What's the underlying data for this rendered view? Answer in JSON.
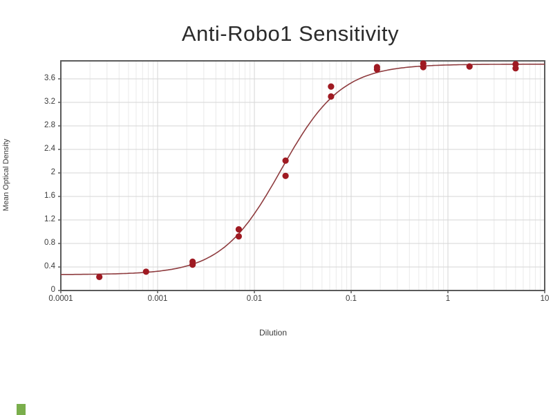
{
  "chart_data": {
    "type": "scatter",
    "title": "Anti-Robo1 Sensitivity",
    "xlabel": "Dilution",
    "ylabel": "Mean Optical Density",
    "x_scale": "log",
    "xlim": [
      0.0001,
      10
    ],
    "ylim": [
      0,
      3.9
    ],
    "grid": "on",
    "legend": "none",
    "x_ticks": [
      {
        "value": 0.0001,
        "label": "0.0001"
      },
      {
        "value": 0.001,
        "label": "0.001"
      },
      {
        "value": 0.01,
        "label": "0.01"
      },
      {
        "value": 0.1,
        "label": "0.1"
      },
      {
        "value": 1,
        "label": "1"
      },
      {
        "value": 10,
        "label": "10"
      }
    ],
    "y_ticks": [
      {
        "value": 0,
        "label": "0"
      },
      {
        "value": 0.4,
        "label": "0.4"
      },
      {
        "value": 0.8,
        "label": "0.8"
      },
      {
        "value": 1.2,
        "label": "1.2"
      },
      {
        "value": 1.6,
        "label": "1.6"
      },
      {
        "value": 2,
        "label": "2"
      },
      {
        "value": 2.4,
        "label": "2.4"
      },
      {
        "value": 2.8,
        "label": "2.8"
      },
      {
        "value": 3.2,
        "label": "3.2"
      },
      {
        "value": 3.6,
        "label": "3.6"
      }
    ],
    "points": [
      {
        "x": 0.00025,
        "y": 0.23
      },
      {
        "x": 0.00076,
        "y": 0.32
      },
      {
        "x": 0.0023,
        "y": 0.44
      },
      {
        "x": 0.0023,
        "y": 0.49
      },
      {
        "x": 0.0069,
        "y": 0.92
      },
      {
        "x": 0.0069,
        "y": 1.04
      },
      {
        "x": 0.021,
        "y": 1.95
      },
      {
        "x": 0.021,
        "y": 2.21
      },
      {
        "x": 0.062,
        "y": 3.3
      },
      {
        "x": 0.062,
        "y": 3.47
      },
      {
        "x": 0.185,
        "y": 3.76
      },
      {
        "x": 0.185,
        "y": 3.8
      },
      {
        "x": 0.556,
        "y": 3.8
      },
      {
        "x": 0.556,
        "y": 3.86
      },
      {
        "x": 1.67,
        "y": 3.81
      },
      {
        "x": 5.0,
        "y": 3.78
      },
      {
        "x": 5.0,
        "y": 3.85
      }
    ],
    "fit_curve": {
      "model": "4PL",
      "bottom": 0.27,
      "top": 3.85,
      "ec50": 0.019,
      "hill": 1.4
    },
    "colors": {
      "point": "#9f1a22",
      "curve": "#8e3b3e",
      "grid_major": "#d6d6d6",
      "grid_minor": "#eaeaea",
      "axis": "#5a5a5a",
      "text": "#3a3a3a",
      "title": "#2b2b2b",
      "corner_mark": "#7aae4c"
    }
  }
}
